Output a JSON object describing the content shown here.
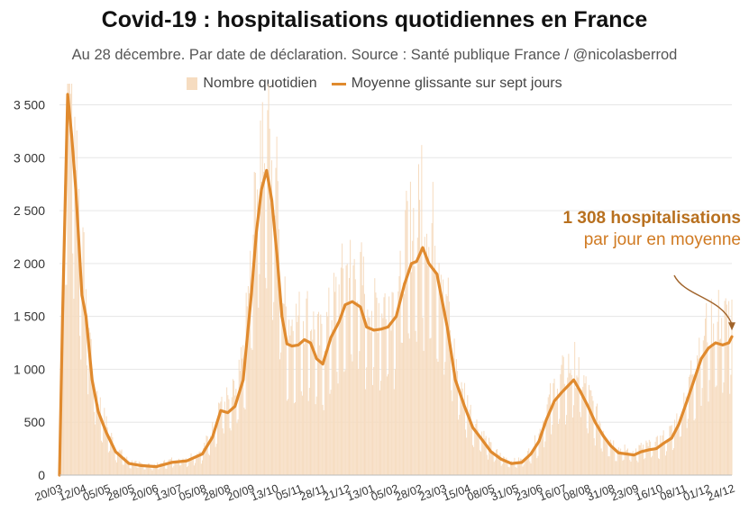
{
  "header": {
    "title": "Covid-19 : hospitalisations quotidiennes en France",
    "subtitle": "Au 28 décembre. Par date de déclaration. Source : Santé publique France / @nicolasberrod"
  },
  "legend": {
    "bars_label": "Nombre quotidien",
    "line_label": "Moyenne glissante sur sept jours"
  },
  "annotation": {
    "strong": "1 308 hospitalisations",
    "sub": "par jour en moyenne"
  },
  "colors": {
    "bar": "#f6dcc0",
    "line": "#e08a2e",
    "grid": "#e6e6e6",
    "annotation_strong": "#b8701f",
    "annotation_arrow": "#a0632a"
  },
  "chart_data": {
    "type": "bar+line",
    "title": "Covid-19 : hospitalisations quotidiennes en France",
    "xlabel": "",
    "ylabel": "",
    "ylim": [
      0,
      3700
    ],
    "y_ticks": [
      0,
      500,
      1000,
      1500,
      2000,
      2500,
      3000,
      3500
    ],
    "y_tick_labels": [
      "0",
      "500",
      "1 000",
      "1 500",
      "2 000",
      "2 500",
      "3 000",
      "3 500"
    ],
    "x_tick_labels": [
      "20/03",
      "12/04",
      "05/05",
      "28/05",
      "20/06",
      "13/07",
      "05/08",
      "28/08",
      "20/09",
      "13/10",
      "05/11",
      "28/11",
      "21/12",
      "13/01",
      "05/02",
      "28/02",
      "23/03",
      "15/04",
      "08/05",
      "31/05",
      "23/06",
      "16/07",
      "08/08",
      "31/08",
      "23/09",
      "16/10",
      "08/11",
      "01/12",
      "24/12"
    ],
    "series": [
      {
        "name": "Moyenne glissante sur sept jours",
        "type": "line",
        "points": [
          [
            0,
            0
          ],
          [
            3,
            1500
          ],
          [
            8,
            3600
          ],
          [
            12,
            3200
          ],
          [
            16,
            2700
          ],
          [
            22,
            1700
          ],
          [
            26,
            1500
          ],
          [
            32,
            900
          ],
          [
            38,
            600
          ],
          [
            46,
            400
          ],
          [
            55,
            220
          ],
          [
            68,
            110
          ],
          [
            80,
            90
          ],
          [
            95,
            80
          ],
          [
            110,
            120
          ],
          [
            125,
            135
          ],
          [
            140,
            200
          ],
          [
            150,
            360
          ],
          [
            158,
            610
          ],
          [
            165,
            590
          ],
          [
            172,
            650
          ],
          [
            180,
            900
          ],
          [
            188,
            1700
          ],
          [
            193,
            2300
          ],
          [
            198,
            2700
          ],
          [
            203,
            2880
          ],
          [
            208,
            2600
          ],
          [
            213,
            2100
          ],
          [
            218,
            1500
          ],
          [
            223,
            1240
          ],
          [
            228,
            1220
          ],
          [
            234,
            1230
          ],
          [
            240,
            1280
          ],
          [
            246,
            1250
          ],
          [
            252,
            1100
          ],
          [
            258,
            1050
          ],
          [
            266,
            1300
          ],
          [
            274,
            1450
          ],
          [
            280,
            1610
          ],
          [
            287,
            1640
          ],
          [
            295,
            1590
          ],
          [
            301,
            1400
          ],
          [
            308,
            1370
          ],
          [
            315,
            1380
          ],
          [
            322,
            1400
          ],
          [
            330,
            1500
          ],
          [
            338,
            1800
          ],
          [
            345,
            2000
          ],
          [
            350,
            2020
          ],
          [
            356,
            2150
          ],
          [
            362,
            2000
          ],
          [
            370,
            1900
          ],
          [
            380,
            1400
          ],
          [
            388,
            900
          ],
          [
            397,
            650
          ],
          [
            405,
            450
          ],
          [
            413,
            350
          ],
          [
            423,
            220
          ],
          [
            433,
            150
          ],
          [
            443,
            110
          ],
          [
            453,
            120
          ],
          [
            462,
            200
          ],
          [
            470,
            320
          ],
          [
            477,
            520
          ],
          [
            485,
            700
          ],
          [
            492,
            780
          ],
          [
            500,
            860
          ],
          [
            504,
            900
          ],
          [
            510,
            800
          ],
          [
            518,
            650
          ],
          [
            525,
            500
          ],
          [
            533,
            370
          ],
          [
            540,
            280
          ],
          [
            548,
            210
          ],
          [
            556,
            200
          ],
          [
            563,
            190
          ],
          [
            570,
            220
          ],
          [
            578,
            240
          ],
          [
            585,
            250
          ],
          [
            592,
            300
          ],
          [
            600,
            350
          ],
          [
            607,
            480
          ],
          [
            615,
            700
          ],
          [
            622,
            900
          ],
          [
            629,
            1100
          ],
          [
            636,
            1200
          ],
          [
            643,
            1250
          ],
          [
            650,
            1230
          ],
          [
            656,
            1250
          ],
          [
            659,
            1308
          ]
        ]
      },
      {
        "name": "Nombre quotidien",
        "type": "bar",
        "note": "daily values fluctuate around the 7-day moving average; peaks near 3 700 (early April 2020), 3 500 (early November 2020) and 3 100 (early April 2021)"
      }
    ],
    "annotations": [
      {
        "text": "1 308 hospitalisations par jour en moyenne",
        "x": "28/12",
        "y": 1308
      }
    ]
  }
}
